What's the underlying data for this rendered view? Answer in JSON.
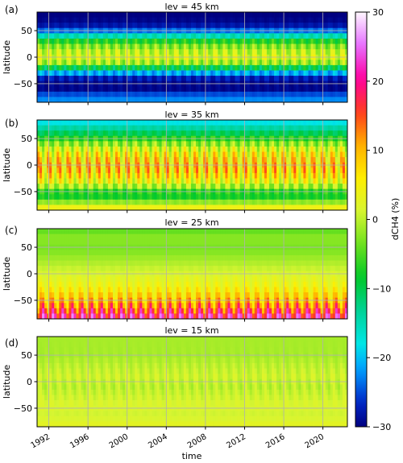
{
  "chart_data": [
    {
      "type": "heatmap",
      "panel_label": "(a)",
      "title": "lev = 45 km",
      "xlabel": "",
      "ylabel": "latitude",
      "xlim": [
        1990.8,
        2022.5
      ],
      "ylim": [
        -85,
        85
      ],
      "x_ticks": [
        1992,
        1996,
        2000,
        2004,
        2008,
        2012,
        2016,
        2020
      ],
      "y_ticks": [
        -50,
        0,
        50
      ],
      "y_tick_labels": [
        "−50",
        "0",
        "50"
      ],
      "grid": true,
      "lat_profile": {
        "lat": [
          -85,
          -75,
          -65,
          -55,
          -45,
          -35,
          -25,
          -15,
          -5,
          5,
          15,
          25,
          35,
          45,
          55,
          65,
          75,
          85
        ],
        "value": [
          -24,
          -21,
          -29,
          -30,
          -29,
          -26,
          -16,
          -4,
          2,
          2,
          -1,
          -4,
          -10,
          -20,
          -27,
          -29,
          -30,
          -30
        ]
      },
      "seasonal_amplitude": 4,
      "seasonal_center_lat": 0
    },
    {
      "type": "heatmap",
      "panel_label": "(b)",
      "title": "lev = 35 km",
      "xlabel": "",
      "ylabel": "latitude",
      "xlim": [
        1990.8,
        2022.5
      ],
      "ylim": [
        -85,
        85
      ],
      "x_ticks": [
        1992,
        1996,
        2000,
        2004,
        2008,
        2012,
        2016,
        2020
      ],
      "y_ticks": [
        -50,
        0,
        50
      ],
      "y_tick_labels": [
        "−50",
        "0",
        "50"
      ],
      "grid": true,
      "lat_profile": {
        "lat": [
          -85,
          -75,
          -65,
          -55,
          -45,
          -35,
          -25,
          -15,
          -5,
          5,
          15,
          25,
          35,
          45,
          55,
          65,
          75,
          85
        ],
        "value": [
          6,
          2,
          -6,
          -9,
          -4,
          2,
          5,
          7,
          8,
          7,
          6,
          4,
          0,
          -4,
          -9,
          -12,
          -16,
          -20
        ]
      },
      "seasonal_amplitude": 8,
      "seasonal_center_lat": 0
    },
    {
      "type": "heatmap",
      "panel_label": "(c)",
      "title": "lev = 25 km",
      "xlabel": "",
      "ylabel": "latitude",
      "xlim": [
        1990.8,
        2022.5
      ],
      "ylim": [
        -85,
        85
      ],
      "x_ticks": [
        1992,
        1996,
        2000,
        2004,
        2008,
        2012,
        2016,
        2020
      ],
      "y_ticks": [
        -50,
        0,
        50
      ],
      "y_tick_labels": [
        "−50",
        "0",
        "50"
      ],
      "grid": true,
      "lat_profile": {
        "lat": [
          -85,
          -75,
          -65,
          -55,
          -45,
          -35,
          -25,
          -15,
          -5,
          5,
          15,
          25,
          35,
          45,
          55,
          65,
          75,
          85
        ],
        "value": [
          22,
          18,
          14,
          10,
          8,
          6,
          4,
          3,
          2,
          1,
          0,
          -1,
          -2,
          -3,
          -3,
          -2,
          -3,
          -5
        ]
      },
      "seasonal_amplitude": 7,
      "seasonal_center_lat": -70
    },
    {
      "type": "heatmap",
      "panel_label": "(d)",
      "title": "lev = 15 km",
      "xlabel": "time",
      "ylabel": "latitude",
      "xlim": [
        1990.8,
        2022.5
      ],
      "ylim": [
        -85,
        85
      ],
      "x_ticks": [
        1992,
        1996,
        2000,
        2004,
        2008,
        2012,
        2016,
        2020
      ],
      "y_ticks": [
        -50,
        0,
        50
      ],
      "y_tick_labels": [
        "−50",
        "0",
        "50"
      ],
      "grid": true,
      "lat_profile": {
        "lat": [
          -85,
          -75,
          -65,
          -55,
          -45,
          -35,
          -25,
          -15,
          -5,
          5,
          15,
          25,
          35,
          45,
          55,
          65,
          75,
          85
        ],
        "value": [
          3,
          2,
          1,
          1,
          2,
          1,
          1,
          0,
          0,
          1,
          1,
          0,
          0,
          -1,
          -1,
          -1,
          -1,
          -1
        ]
      },
      "seasonal_amplitude": 1.5,
      "seasonal_center_lat": 0
    }
  ],
  "colorbar": {
    "label": "dCH4 (%)",
    "range": [
      -30,
      30
    ],
    "ticks": [
      -30,
      -20,
      -10,
      0,
      10,
      20,
      30
    ],
    "tick_labels": [
      "−30",
      "−20",
      "−10",
      "0",
      "10",
      "20",
      "30"
    ],
    "colormap": "gist_ncar"
  }
}
